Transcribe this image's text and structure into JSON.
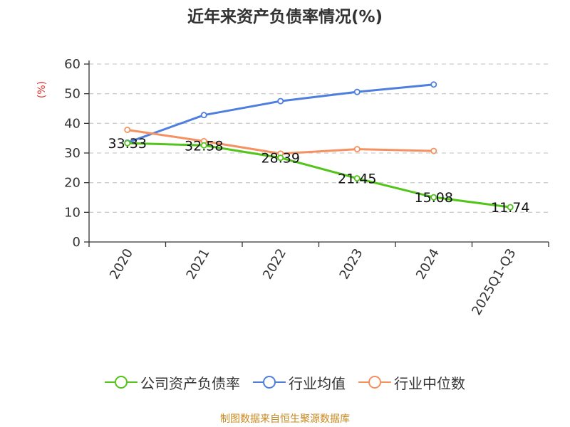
{
  "chart_data": {
    "type": "line",
    "title": "近年来资产负债率情况(%)",
    "ylabel": "(%)",
    "xlabel": "",
    "categories": [
      "2020",
      "2021",
      "2022",
      "2023",
      "2024",
      "2025Q1-Q3"
    ],
    "ylim": [
      0,
      60
    ],
    "yticks": [
      0,
      10,
      20,
      30,
      40,
      50,
      60
    ],
    "grid": true,
    "legend_position": "bottom",
    "series": [
      {
        "name": "公司资产负债率",
        "color": "#52c41a",
        "values": [
          33.33,
          32.58,
          28.39,
          21.45,
          15.08,
          11.74
        ],
        "labels": [
          "33.33",
          "32.58",
          "28.39",
          "21.45",
          "15.08",
          "11.74"
        ]
      },
      {
        "name": "行业均值",
        "color": "#4e7fdf",
        "values": [
          33.5,
          42.8,
          47.5,
          50.6,
          53.1,
          null
        ]
      },
      {
        "name": "行业中位数",
        "color": "#f59160",
        "values": [
          37.8,
          34.0,
          29.8,
          31.3,
          30.7,
          null
        ]
      }
    ]
  },
  "footer": {
    "source": "制图数据来自恒生聚源数据库"
  }
}
